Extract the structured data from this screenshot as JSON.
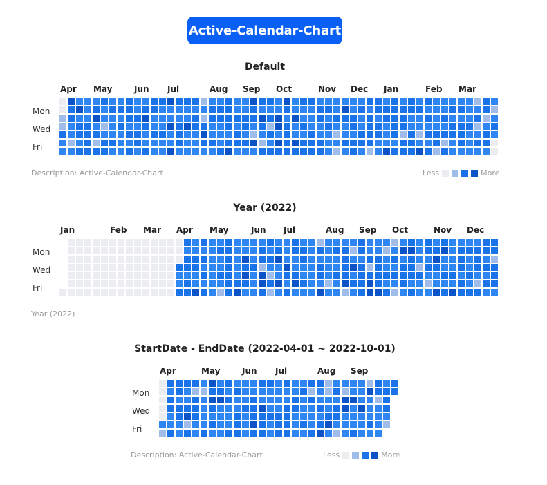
{
  "header": {
    "title": "Active-Calendar-Chart"
  },
  "colors": {
    "empty": "#ebedf0",
    "levels": [
      "#ebedf0",
      "#9fbde8",
      "#2f86f2",
      "#1a73e8",
      "#0b53c6"
    ],
    "accent": "#0a5ff5"
  },
  "legend": {
    "less_label": "Less",
    "more_label": "More"
  },
  "weekday_labels": [
    "Mon",
    "Wed",
    "Fri"
  ],
  "charts": [
    {
      "title": "Default",
      "months": [
        "Apr",
        "May",
        "Jun",
        "Jul",
        "Aug",
        "Sep",
        "Oct",
        "Nov",
        "Dec",
        "Jan",
        "Feb",
        "Mar"
      ],
      "description": "Description: Active-Calendar-Chart",
      "show_legend": true
    },
    {
      "title": "Year (2022)",
      "months": [
        "Jan",
        "Feb",
        "Mar",
        "Apr",
        "May",
        "Jun",
        "Jul",
        "Aug",
        "Sep",
        "Oct",
        "Nov",
        "Dec"
      ],
      "description": "Year (2022)",
      "show_legend": false
    },
    {
      "title": "StartDate - EndDate (2022-04-01 ~ 2022-10-01)",
      "months": [
        "Apr",
        "May",
        "Jun",
        "Jul",
        "Aug",
        "Sep"
      ],
      "description": "Description: Active-Calendar-Chart",
      "show_legend": true
    }
  ]
}
